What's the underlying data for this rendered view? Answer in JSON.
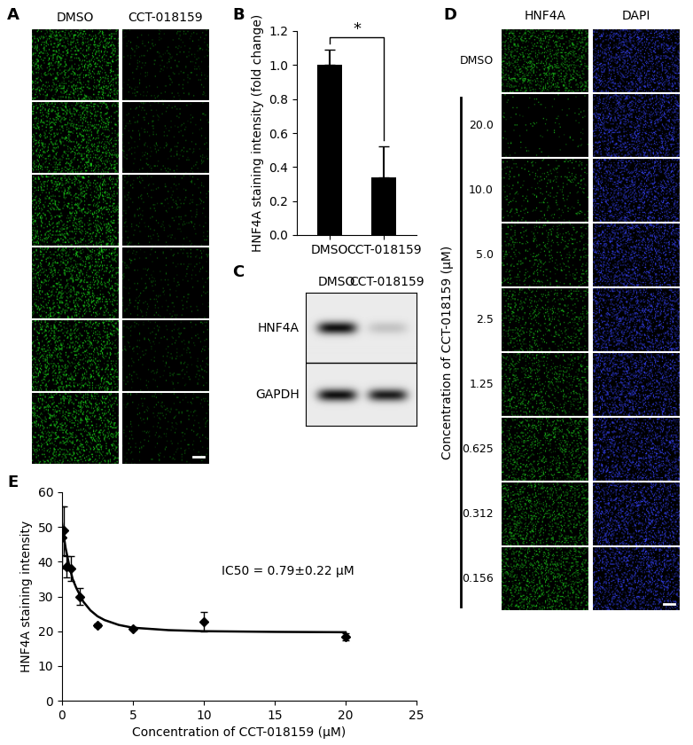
{
  "figure": {
    "panel_labels": [
      "A",
      "B",
      "C",
      "D",
      "E"
    ],
    "panel_A": {
      "columns": [
        "DMSO",
        "CCT-018159"
      ]
    },
    "panel_C": {
      "lanes": [
        "DMSO",
        "CCT-018159"
      ],
      "bands": [
        "HNF4A",
        "GAPDH"
      ]
    },
    "panel_D": {
      "columns": [
        "HNF4A",
        "DAPI"
      ],
      "rows": [
        "DMSO",
        "20.0",
        "10.0",
        "5.0",
        "2.5",
        "1.25",
        "0.625",
        "0.312",
        "0.156"
      ],
      "axis_label": "Concentration of CCT-018159 (μM)"
    }
  },
  "chart_data": [
    {
      "type": "bar",
      "categories": [
        "DMSO",
        "CCT-018159"
      ],
      "values": [
        1.0,
        0.34
      ],
      "errors": [
        0.09,
        0.18
      ],
      "color": "#000000",
      "y_label": "HNF4A staining intensity (fold change)",
      "ylim": [
        0.0,
        1.2
      ],
      "yticks": [
        0.0,
        0.2,
        0.4,
        0.6,
        0.8,
        1.0,
        1.2
      ],
      "annotations": [
        "*"
      ]
    },
    {
      "type": "scatter",
      "x_label": "Concentration of CCT-018159 (μM)",
      "y_label": "HNF4A staining intensity",
      "xlim": [
        0,
        25
      ],
      "xticks": [
        0,
        5,
        10,
        15,
        20,
        25
      ],
      "ylim": [
        0,
        60
      ],
      "yticks": [
        0,
        10,
        20,
        30,
        40,
        50,
        60
      ],
      "annotations": [
        "IC50 = 0.79±0.22 μM"
      ],
      "series": [
        {
          "type": "scatter",
          "marker": "diamond",
          "color": "#000000",
          "x": [
            0,
            0.156,
            0.312,
            0.625,
            1.25,
            2.5,
            5,
            10,
            20
          ],
          "values": [
            47,
            49,
            38.5,
            38,
            30,
            21.8,
            20.8,
            22.7,
            18.3
          ],
          "errors": [
            9,
            7,
            3,
            3.5,
            2.5,
            0.5,
            0.5,
            2.8,
            1
          ]
        },
        {
          "type": "line",
          "line_style": "solid",
          "color": "#000000",
          "x": [
            0,
            0.25,
            0.5,
            0.75,
            1,
            1.5,
            2,
            2.5,
            3,
            4,
            5,
            7.5,
            10,
            15,
            20
          ],
          "values": [
            51,
            44,
            39,
            35,
            32.5,
            28.5,
            26,
            24.3,
            23.2,
            21.8,
            21,
            20.3,
            20,
            19.8,
            19.7
          ]
        }
      ]
    }
  ]
}
